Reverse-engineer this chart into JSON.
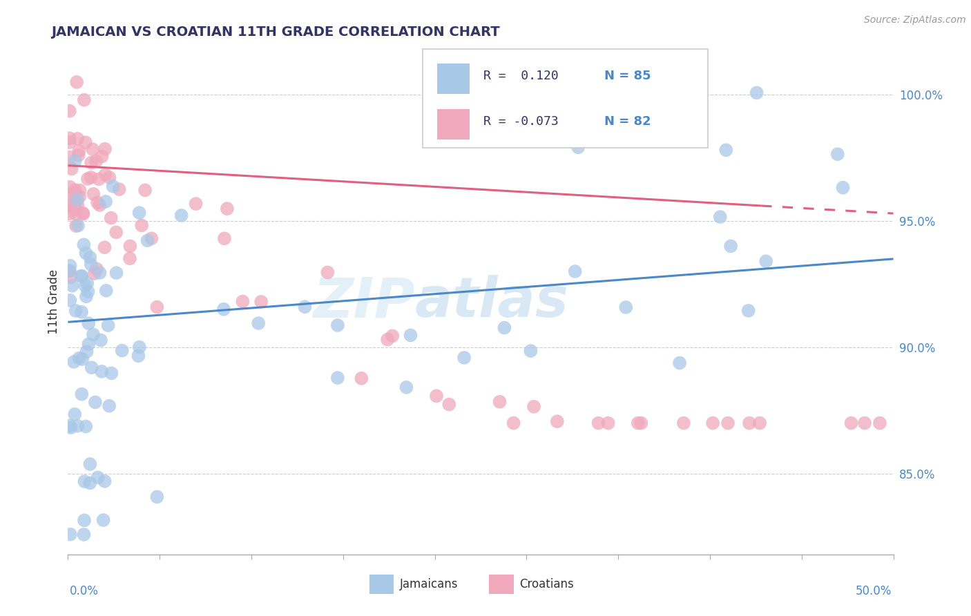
{
  "title": "JAMAICAN VS CROATIAN 11TH GRADE CORRELATION CHART",
  "source": "Source: ZipAtlas.com",
  "ylabel": "11th Grade",
  "xlim": [
    0.0,
    0.5
  ],
  "ylim": [
    0.818,
    1.018
  ],
  "r_jamaican": 0.12,
  "n_jamaican": 85,
  "r_croatian": -0.073,
  "n_croatian": 82,
  "color_jamaican": "#a8c8e8",
  "color_croatian": "#f0a8bc",
  "color_jamaican_line": "#4a88c8",
  "color_croatian_line": "#e06080",
  "watermark_zip": "ZIP",
  "watermark_atlas": "atlas",
  "jamaican_line_y0": 0.91,
  "jamaican_line_y1": 0.935,
  "croatian_line_y0": 0.972,
  "croatian_line_y1": 0.953,
  "ytick_vals": [
    0.85,
    0.9,
    0.95,
    1.0
  ],
  "ytick_labels": [
    "85.0%",
    "90.0%",
    "95.0%",
    "100.0%"
  ]
}
